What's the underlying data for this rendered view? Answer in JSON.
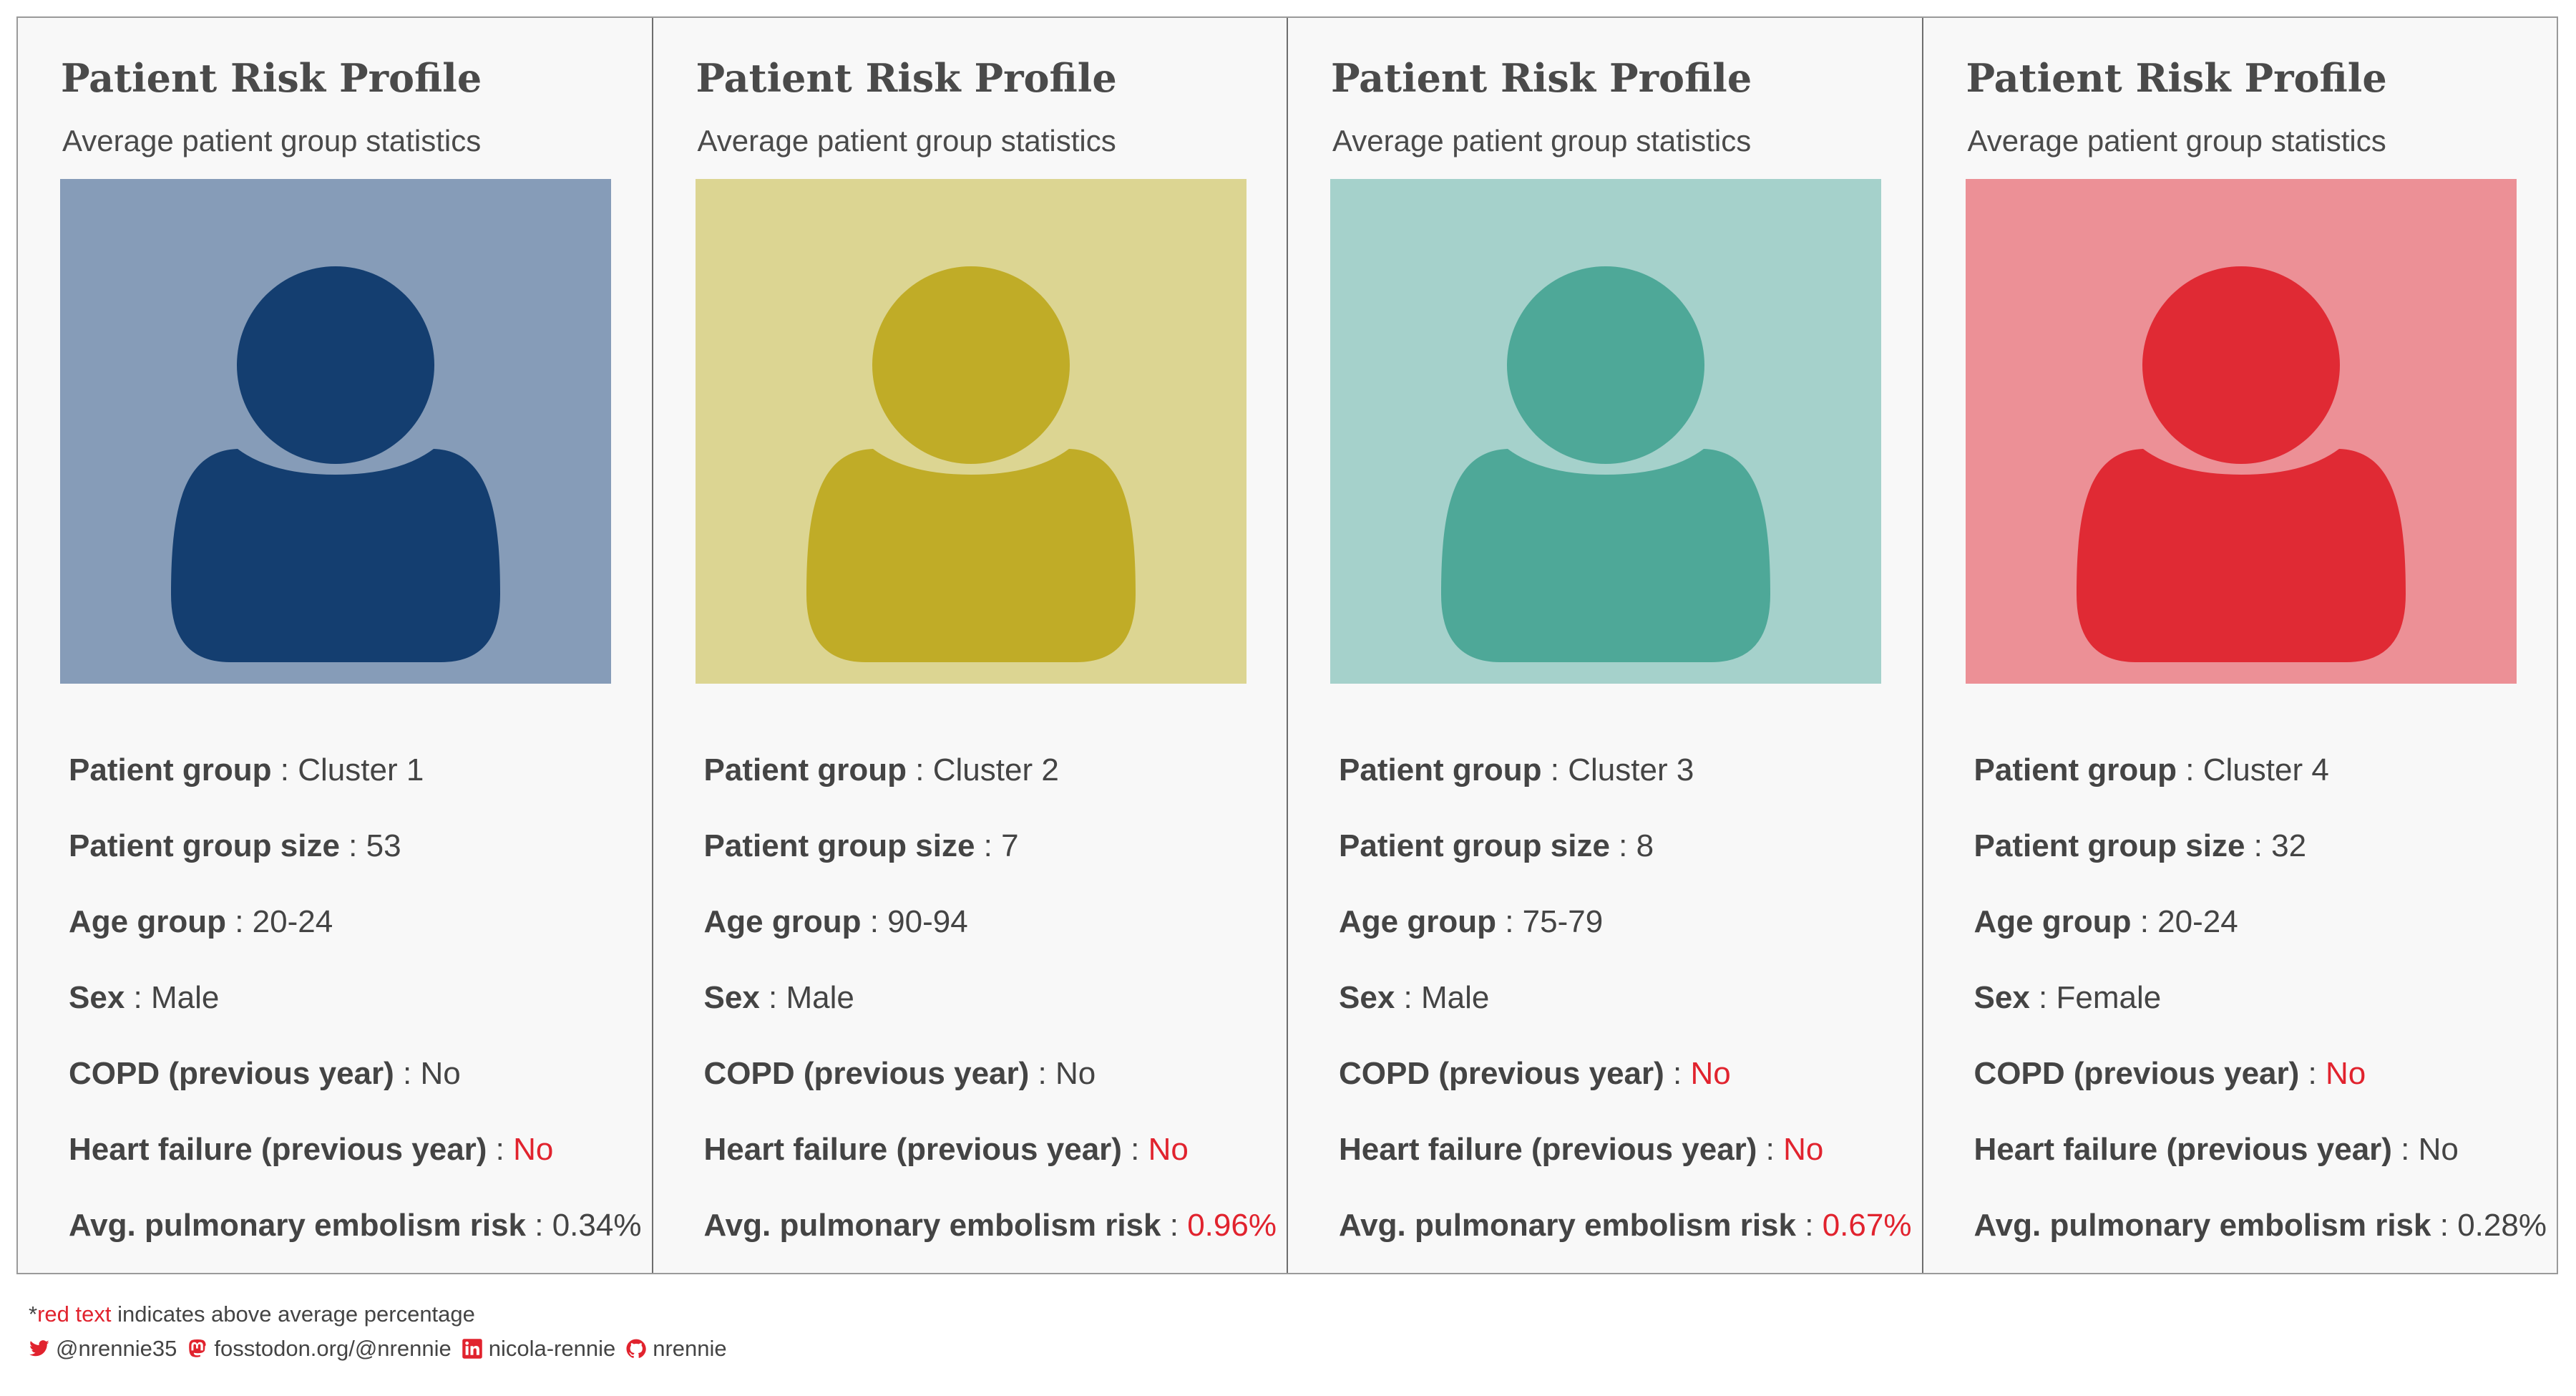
{
  "colors": {
    "cluster_1": {
      "panel": "#869cb8",
      "figure": "#143e70"
    },
    "cluster_2": {
      "panel": "#dcd592",
      "figure": "#c0ac27"
    },
    "cluster_3": {
      "panel": "#a5d1cb",
      "figure": "#4ea898"
    },
    "cluster_4": {
      "panel": "#ec9096",
      "figure": "#e02a34"
    },
    "above_average_text": "#e1232e",
    "body_text": "#444444",
    "card_background": "#f8f8f8"
  },
  "cards": [
    {
      "title": "Patient Risk Profile",
      "subtitle": "Average patient group statistics",
      "avatar_icon": "person-icon",
      "stats": [
        {
          "label": "Patient group",
          "sep": " : ",
          "value": "Cluster 1",
          "above": false
        },
        {
          "label": "Patient group size",
          "sep": " : ",
          "value": "53",
          "above": false
        },
        {
          "label": "Age group",
          "sep": " : ",
          "value": "20-24",
          "above": false
        },
        {
          "label": "Sex",
          "sep": " : ",
          "value": "Male",
          "above": false
        },
        {
          "label": "COPD (previous year)",
          "sep": " : ",
          "value": "No",
          "above": false
        },
        {
          "label": "Heart failure (previous year)",
          "sep": " : ",
          "value": "No",
          "above": true
        },
        {
          "label": "Avg. pulmonary embolism risk",
          "sep": " : ",
          "value": "0.34%",
          "above": false
        }
      ]
    },
    {
      "title": "Patient Risk Profile",
      "subtitle": "Average patient group statistics",
      "avatar_icon": "person-icon",
      "stats": [
        {
          "label": "Patient group",
          "sep": " : ",
          "value": "Cluster 2",
          "above": false
        },
        {
          "label": "Patient group size",
          "sep": " : ",
          "value": "7",
          "above": false
        },
        {
          "label": "Age group",
          "sep": " : ",
          "value": "90-94",
          "above": false
        },
        {
          "label": "Sex",
          "sep": " : ",
          "value": "Male",
          "above": false
        },
        {
          "label": "COPD (previous year)",
          "sep": " : ",
          "value": "No",
          "above": false
        },
        {
          "label": "Heart failure (previous year)",
          "sep": " : ",
          "value": "No",
          "above": true
        },
        {
          "label": "Avg. pulmonary embolism risk",
          "sep": " : ",
          "value": "0.96%",
          "above": true
        }
      ]
    },
    {
      "title": "Patient Risk Profile",
      "subtitle": "Average patient group statistics",
      "avatar_icon": "person-icon",
      "stats": [
        {
          "label": "Patient group",
          "sep": " : ",
          "value": "Cluster 3",
          "above": false
        },
        {
          "label": "Patient group size",
          "sep": " : ",
          "value": "8",
          "above": false
        },
        {
          "label": "Age group",
          "sep": " : ",
          "value": "75-79",
          "above": false
        },
        {
          "label": "Sex",
          "sep": " : ",
          "value": "Male",
          "above": false
        },
        {
          "label": "COPD (previous year)",
          "sep": " : ",
          "value": "No",
          "above": true
        },
        {
          "label": "Heart failure (previous year)",
          "sep": " : ",
          "value": "No",
          "above": true
        },
        {
          "label": "Avg. pulmonary embolism risk",
          "sep": " : ",
          "value": "0.67%",
          "above": true
        }
      ]
    },
    {
      "title": "Patient Risk Profile",
      "subtitle": "Average patient group statistics",
      "avatar_icon": "person-icon",
      "stats": [
        {
          "label": "Patient group",
          "sep": " : ",
          "value": "Cluster 4",
          "above": false
        },
        {
          "label": "Patient group size",
          "sep": " : ",
          "value": "32",
          "above": false
        },
        {
          "label": "Age group",
          "sep": " : ",
          "value": "20-24",
          "above": false
        },
        {
          "label": "Sex",
          "sep": " : ",
          "value": "Female",
          "above": false
        },
        {
          "label": "COPD (previous year)",
          "sep": " : ",
          "value": "No",
          "above": true
        },
        {
          "label": "Heart failure (previous year)",
          "sep": " : ",
          "value": "No",
          "above": false
        },
        {
          "label": "Avg. pulmonary embolism risk",
          "sep": " : ",
          "value": "0.28%",
          "above": false
        }
      ]
    }
  ],
  "footnote": {
    "asterisk": "*",
    "red_part": "red text",
    "rest": "indicates above average percentage"
  },
  "socials": [
    {
      "icon": "twitter-icon",
      "text": "@nrennie35"
    },
    {
      "icon": "mastodon-icon",
      "text": "fosstodon.org/@nrennie"
    },
    {
      "icon": "linkedin-icon",
      "text": "nicola-rennie"
    },
    {
      "icon": "github-icon",
      "text": "nrennie"
    }
  ]
}
